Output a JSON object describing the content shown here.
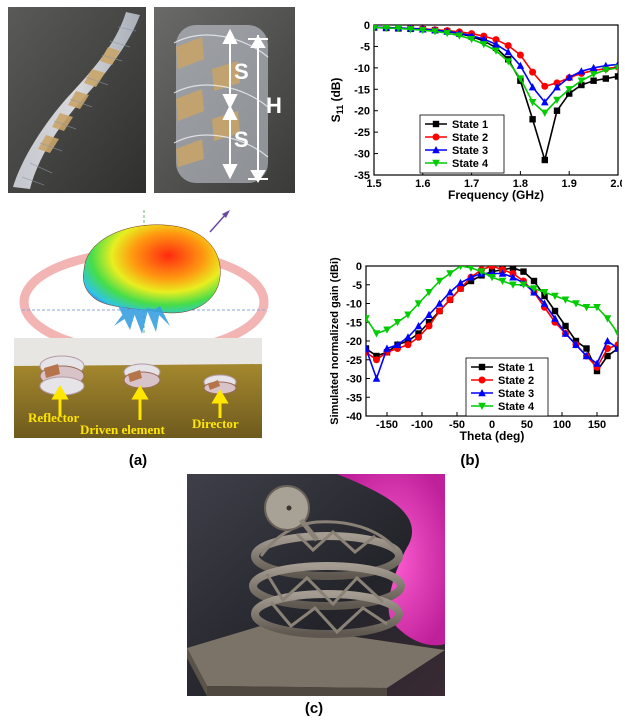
{
  "figure": {
    "panel_labels": {
      "a": "(a)",
      "b": "(b)",
      "c": "(c)"
    },
    "photo_left": {
      "dimension_labels": {
        "s_top": "S",
        "s_bottom": "S",
        "h": "H"
      }
    },
    "array_photo": {
      "labels": {
        "reflector": "Reflector",
        "driven": "Driven element",
        "director": "Director"
      }
    }
  },
  "chart_data": [
    {
      "type": "line",
      "xlabel": "Frequency (GHz)",
      "ylabel": "S11 (dB)",
      "ylabel_main": "S",
      "ylabel_sub": "11",
      "ylabel_unit": " (dB)",
      "xlim": [
        1.5,
        2.0
      ],
      "ylim": [
        -35,
        0
      ],
      "xticks": [
        "1.5",
        "1.6",
        "1.7",
        "1.8",
        "1.9",
        "2.0"
      ],
      "yticks": [
        "0",
        "-5",
        "-10",
        "-15",
        "-20",
        "-25",
        "-30",
        "-35"
      ],
      "legend_position": "bottom-left",
      "series": [
        {
          "name": "State 1",
          "color": "#000000",
          "marker": "square",
          "x": [
            1.5,
            1.525,
            1.55,
            1.575,
            1.6,
            1.625,
            1.65,
            1.675,
            1.7,
            1.725,
            1.75,
            1.775,
            1.8,
            1.825,
            1.85,
            1.875,
            1.9,
            1.925,
            1.95,
            1.975,
            2.0
          ],
          "y": [
            -0.6,
            -0.7,
            -0.8,
            -0.9,
            -1.0,
            -1.2,
            -1.5,
            -2.0,
            -2.7,
            -3.7,
            -5.3,
            -8.0,
            -13.0,
            -22.0,
            -31.5,
            -20.0,
            -16.0,
            -14.0,
            -13.0,
            -12.5,
            -12.0
          ]
        },
        {
          "name": "State 2",
          "color": "#ff0000",
          "marker": "circle",
          "x": [
            1.5,
            1.525,
            1.55,
            1.575,
            1.6,
            1.625,
            1.65,
            1.675,
            1.7,
            1.725,
            1.75,
            1.775,
            1.8,
            1.825,
            1.85,
            1.875,
            1.9,
            1.925,
            1.95,
            1.975,
            2.0
          ],
          "y": [
            -0.5,
            -0.6,
            -0.7,
            -0.8,
            -0.9,
            -1.1,
            -1.3,
            -1.6,
            -2.0,
            -2.6,
            -3.4,
            -4.8,
            -7.0,
            -11.0,
            -14.3,
            -13.5,
            -12.3,
            -11.3,
            -10.6,
            -10.2,
            -9.8
          ]
        },
        {
          "name": "State 3",
          "color": "#0000ff",
          "marker": "triangle",
          "x": [
            1.5,
            1.525,
            1.55,
            1.575,
            1.6,
            1.625,
            1.65,
            1.675,
            1.7,
            1.725,
            1.75,
            1.775,
            1.8,
            1.825,
            1.85,
            1.875,
            1.9,
            1.925,
            1.95,
            1.975,
            2.0
          ],
          "y": [
            -0.5,
            -0.6,
            -0.7,
            -0.8,
            -1.0,
            -1.2,
            -1.5,
            -1.9,
            -2.5,
            -3.3,
            -4.5,
            -6.3,
            -9.5,
            -14.5,
            -18.0,
            -14.5,
            -12.2,
            -10.8,
            -10.0,
            -9.5,
            -9.2
          ]
        },
        {
          "name": "State 4",
          "color": "#00cc00",
          "marker": "triangle-down",
          "x": [
            1.5,
            1.525,
            1.55,
            1.575,
            1.6,
            1.625,
            1.65,
            1.675,
            1.7,
            1.725,
            1.75,
            1.775,
            1.8,
            1.825,
            1.85,
            1.875,
            1.9,
            1.925,
            1.95,
            1.975,
            2.0
          ],
          "y": [
            -0.6,
            -0.7,
            -0.8,
            -1.0,
            -1.2,
            -1.5,
            -1.9,
            -2.5,
            -3.3,
            -4.5,
            -6.0,
            -8.5,
            -12.5,
            -18.0,
            -20.5,
            -17.5,
            -15.0,
            -13.0,
            -11.5,
            -10.5,
            -10.0
          ]
        }
      ]
    },
    {
      "type": "line",
      "xlabel": "Theta (deg)",
      "ylabel": "Simulated normalized gain (dBi)",
      "xlim": [
        -180,
        180
      ],
      "ylim": [
        -40,
        0
      ],
      "xticks": [
        "-150",
        "-100",
        "-50",
        "0",
        "50",
        "100",
        "150"
      ],
      "yticks": [
        "0",
        "-5",
        "-10",
        "-15",
        "-20",
        "-25",
        "-30",
        "-35",
        "-40"
      ],
      "legend_position": "bottom-center",
      "series": [
        {
          "name": "State 1",
          "color": "#000000",
          "marker": "square",
          "x": [
            -180,
            -165,
            -150,
            -135,
            -120,
            -105,
            -90,
            -75,
            -60,
            -45,
            -30,
            -15,
            0,
            15,
            30,
            45,
            60,
            75,
            90,
            105,
            120,
            135,
            150,
            165,
            180
          ],
          "y": [
            -22,
            -24,
            -23,
            -21,
            -20,
            -18,
            -15,
            -12,
            -9,
            -6,
            -4,
            -2.5,
            -1.5,
            -1,
            -0.5,
            -1.5,
            -4,
            -8,
            -12,
            -16,
            -20,
            -22,
            -28,
            -24,
            -22
          ]
        },
        {
          "name": "State 2",
          "color": "#ff0000",
          "marker": "circle",
          "x": [
            -180,
            -165,
            -150,
            -135,
            -120,
            -105,
            -90,
            -75,
            -60,
            -45,
            -30,
            -15,
            0,
            15,
            30,
            45,
            60,
            75,
            90,
            105,
            120,
            135,
            150,
            165,
            180
          ],
          "y": [
            -23,
            -25,
            -23,
            -22,
            -21,
            -19,
            -16,
            -12,
            -9,
            -6,
            -3,
            -1,
            0,
            -1,
            -2,
            -4,
            -7,
            -11,
            -15,
            -18,
            -21,
            -24,
            -27,
            -22,
            -21
          ]
        },
        {
          "name": "State 3",
          "color": "#0000ff",
          "marker": "triangle",
          "x": [
            -180,
            -165,
            -150,
            -135,
            -120,
            -105,
            -90,
            -75,
            -60,
            -45,
            -30,
            -15,
            0,
            15,
            30,
            45,
            60,
            75,
            90,
            105,
            120,
            135,
            150,
            165,
            180
          ],
          "y": [
            -22,
            -30,
            -22,
            -21,
            -19,
            -16,
            -13,
            -10,
            -7,
            -4.5,
            -3,
            -2,
            -2,
            -2,
            -3,
            -4.5,
            -7,
            -10,
            -14,
            -18,
            -21,
            -24,
            -26,
            -20,
            -22
          ]
        },
        {
          "name": "State 4",
          "color": "#00cc00",
          "marker": "triangle-down",
          "x": [
            -180,
            -165,
            -150,
            -135,
            -120,
            -105,
            -90,
            -75,
            -60,
            -45,
            -30,
            -15,
            0,
            15,
            30,
            45,
            60,
            75,
            90,
            105,
            120,
            135,
            150,
            165,
            180
          ],
          "y": [
            -14,
            -18,
            -17,
            -15,
            -13,
            -10,
            -7,
            -4,
            -2,
            0,
            -0.5,
            -1.5,
            -3,
            -4,
            -5,
            -5,
            -6,
            -7,
            -8,
            -9,
            -10,
            -11,
            -11,
            -14,
            -18
          ]
        }
      ]
    }
  ]
}
